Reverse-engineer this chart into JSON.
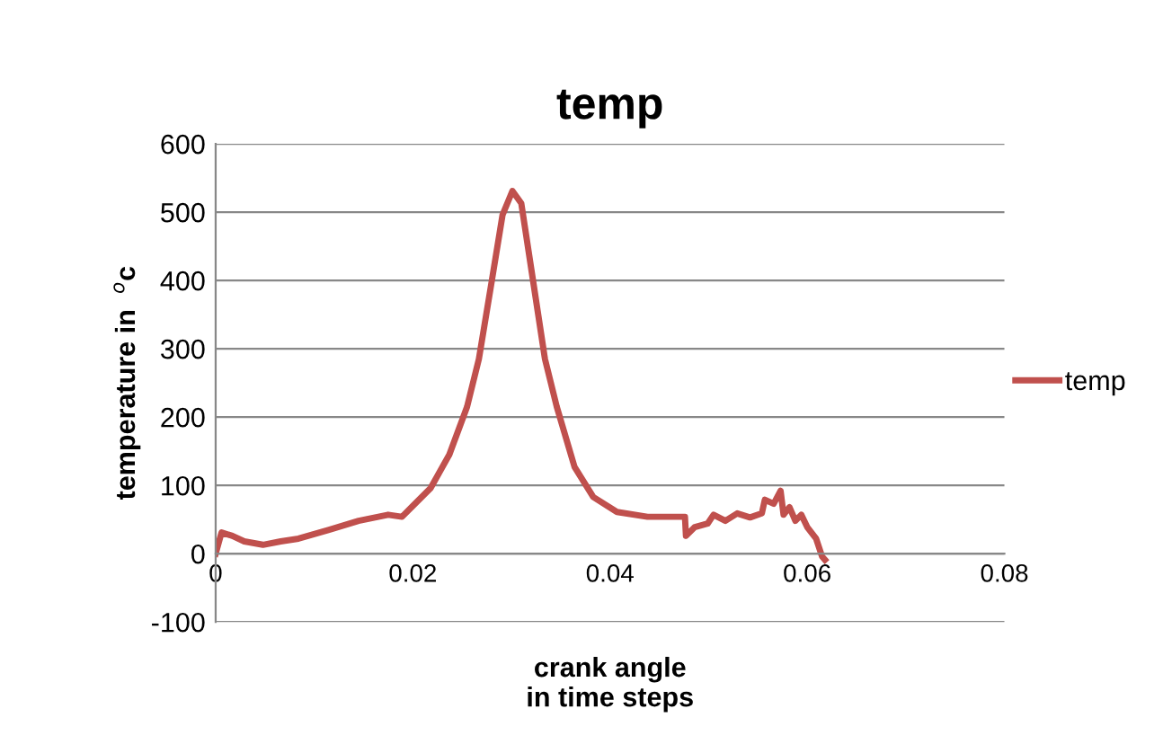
{
  "chart_data": {
    "type": "line",
    "title": "temp",
    "xlabel": "crank angle\nin time steps",
    "ylabel": "temperature in  $^{o}$c",
    "series": [
      {
        "name": "temp",
        "color": "#c0504d",
        "x": [
          0,
          0.0006,
          0.0017,
          0.0029,
          0.0048,
          0.0066,
          0.0084,
          0.0115,
          0.0145,
          0.0175,
          0.0189,
          0.02,
          0.0218,
          0.0237,
          0.0255,
          0.0267,
          0.0279,
          0.0291,
          0.0301,
          0.031,
          0.0322,
          0.0334,
          0.0346,
          0.0364,
          0.0383,
          0.0407,
          0.0438,
          0.0476,
          0.0477,
          0.0486,
          0.0499,
          0.0505,
          0.0517,
          0.0529,
          0.0542,
          0.0554,
          0.0557,
          0.0566,
          0.0573,
          0.0576,
          0.0582,
          0.0588,
          0.0594,
          0.06,
          0.0609,
          0.0615,
          0.0618
        ],
        "values": [
          0,
          31,
          26,
          18,
          13,
          18,
          22,
          35,
          48,
          57,
          54,
          70,
          96,
          145,
          215,
          285,
          390,
          496,
          531,
          513,
          399,
          285,
          215,
          127,
          83,
          61,
          54,
          54,
          26,
          39,
          44,
          57,
          48,
          59,
          53,
          59,
          79,
          73,
          92,
          57,
          68,
          48,
          57,
          39,
          22,
          -4,
          -9
        ]
      }
    ],
    "xlim": [
      0,
      0.08
    ],
    "xticks": [
      0,
      0.02,
      0.04,
      0.06,
      0.08
    ],
    "ylim": [
      -100,
      600
    ],
    "yticks": [
      -100,
      0,
      100,
      200,
      300,
      400,
      500,
      600
    ],
    "grid": "y",
    "legend": "right",
    "marker": "none",
    "line_style": "solid"
  }
}
